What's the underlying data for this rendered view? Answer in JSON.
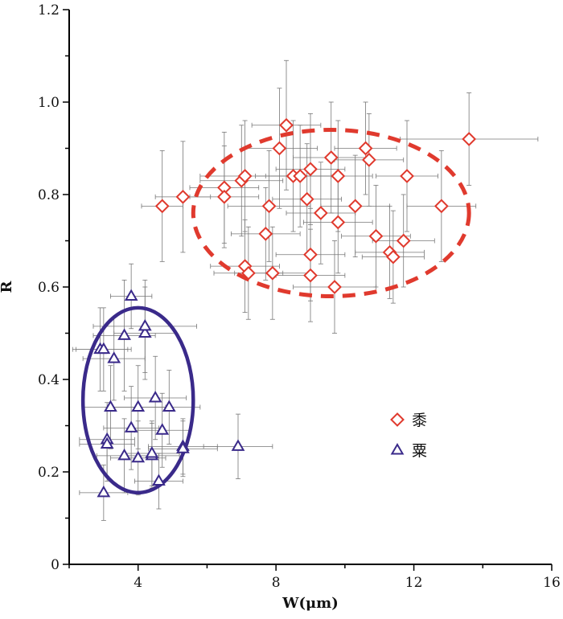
{
  "chart_data": {
    "type": "scatter",
    "xlabel": "W(μm)",
    "ylabel": "R",
    "xlim": [
      2,
      16
    ],
    "ylim": [
      0,
      1.2
    ],
    "x_ticks": [
      4,
      8,
      12,
      16
    ],
    "y_ticks": [
      0,
      0.2,
      0.4,
      0.6,
      0.8,
      1.0,
      1.2
    ],
    "y_tick_labels": [
      "0",
      "0.2",
      "0.4",
      "0.6",
      "0.8",
      "1.0",
      "1.2"
    ],
    "legend_position": "right",
    "grid": false,
    "series": [
      {
        "name": "黍",
        "marker": "diamond",
        "color": "#e03a2e",
        "ellipse": {
          "cx": 9.6,
          "cy": 0.76,
          "rx": 4.0,
          "ry": 0.18,
          "style": "dashed"
        },
        "points": [
          {
            "x": 4.7,
            "y": 0.775,
            "xerr": 0.6,
            "yerr": 0.12
          },
          {
            "x": 5.3,
            "y": 0.795,
            "xerr": 0.8,
            "yerr": 0.12
          },
          {
            "x": 6.5,
            "y": 0.815,
            "xerr": 1.0,
            "yerr": 0.12
          },
          {
            "x": 6.5,
            "y": 0.795,
            "xerr": 1.0,
            "yerr": 0.11
          },
          {
            "x": 7.0,
            "y": 0.83,
            "xerr": 1.2,
            "yerr": 0.12
          },
          {
            "x": 7.1,
            "y": 0.84,
            "xerr": 1.3,
            "yerr": 0.12
          },
          {
            "x": 7.1,
            "y": 0.645,
            "xerr": 1.0,
            "yerr": 0.1
          },
          {
            "x": 7.2,
            "y": 0.63,
            "xerr": 1.0,
            "yerr": 0.1
          },
          {
            "x": 7.7,
            "y": 0.715,
            "xerr": 1.0,
            "yerr": 0.1
          },
          {
            "x": 7.8,
            "y": 0.775,
            "xerr": 1.2,
            "yerr": 0.12
          },
          {
            "x": 7.9,
            "y": 0.63,
            "xerr": 1.1,
            "yerr": 0.1
          },
          {
            "x": 8.1,
            "y": 0.9,
            "xerr": 1.1,
            "yerr": 0.13
          },
          {
            "x": 8.3,
            "y": 0.95,
            "xerr": 1.0,
            "yerr": 0.14
          },
          {
            "x": 8.5,
            "y": 0.84,
            "xerr": 1.1,
            "yerr": 0.12
          },
          {
            "x": 8.7,
            "y": 0.84,
            "xerr": 1.0,
            "yerr": 0.11
          },
          {
            "x": 8.9,
            "y": 0.79,
            "xerr": 1.0,
            "yerr": 0.12
          },
          {
            "x": 9.0,
            "y": 0.855,
            "xerr": 1.0,
            "yerr": 0.12
          },
          {
            "x": 9.0,
            "y": 0.67,
            "xerr": 1.0,
            "yerr": 0.1
          },
          {
            "x": 9.0,
            "y": 0.625,
            "xerr": 1.0,
            "yerr": 0.1
          },
          {
            "x": 9.3,
            "y": 0.76,
            "xerr": 1.0,
            "yerr": 0.11
          },
          {
            "x": 9.6,
            "y": 0.88,
            "xerr": 1.1,
            "yerr": 0.12
          },
          {
            "x": 9.7,
            "y": 0.6,
            "xerr": 1.2,
            "yerr": 0.1
          },
          {
            "x": 9.8,
            "y": 0.84,
            "xerr": 1.0,
            "yerr": 0.12
          },
          {
            "x": 9.8,
            "y": 0.74,
            "xerr": 1.0,
            "yerr": 0.11
          },
          {
            "x": 10.3,
            "y": 0.775,
            "xerr": 1.0,
            "yerr": 0.11
          },
          {
            "x": 10.6,
            "y": 0.9,
            "xerr": 0.9,
            "yerr": 0.1
          },
          {
            "x": 10.7,
            "y": 0.875,
            "xerr": 1.0,
            "yerr": 0.1
          },
          {
            "x": 10.9,
            "y": 0.71,
            "xerr": 1.0,
            "yerr": 0.11
          },
          {
            "x": 11.3,
            "y": 0.675,
            "xerr": 1.0,
            "yerr": 0.1
          },
          {
            "x": 11.4,
            "y": 0.665,
            "xerr": 0.9,
            "yerr": 0.1
          },
          {
            "x": 11.7,
            "y": 0.7,
            "xerr": 0.9,
            "yerr": 0.1
          },
          {
            "x": 11.8,
            "y": 0.84,
            "xerr": 0.9,
            "yerr": 0.12
          },
          {
            "x": 12.8,
            "y": 0.775,
            "xerr": 1.0,
            "yerr": 0.12
          },
          {
            "x": 13.6,
            "y": 0.92,
            "xerr": 2.0,
            "yerr": 0.1
          }
        ]
      },
      {
        "name": "粟",
        "marker": "triangle",
        "color": "#3a2a8a",
        "ellipse": {
          "cx": 4.0,
          "cy": 0.355,
          "rx": 1.6,
          "ry": 0.2,
          "style": "solid"
        },
        "points": [
          {
            "x": 2.9,
            "y": 0.465,
            "xerr": 0.8,
            "yerr": 0.09
          },
          {
            "x": 3.0,
            "y": 0.465,
            "xerr": 0.8,
            "yerr": 0.09
          },
          {
            "x": 3.0,
            "y": 0.155,
            "xerr": 0.7,
            "yerr": 0.06
          },
          {
            "x": 3.1,
            "y": 0.27,
            "xerr": 0.8,
            "yerr": 0.08
          },
          {
            "x": 3.1,
            "y": 0.26,
            "xerr": 0.8,
            "yerr": 0.08
          },
          {
            "x": 3.2,
            "y": 0.34,
            "xerr": 0.8,
            "yerr": 0.09
          },
          {
            "x": 3.3,
            "y": 0.445,
            "xerr": 0.9,
            "yerr": 0.09
          },
          {
            "x": 3.6,
            "y": 0.495,
            "xerr": 0.9,
            "yerr": 0.12
          },
          {
            "x": 3.6,
            "y": 0.235,
            "xerr": 0.8,
            "yerr": 0.08
          },
          {
            "x": 3.8,
            "y": 0.58,
            "xerr": 0.6,
            "yerr": 0.07
          },
          {
            "x": 3.8,
            "y": 0.295,
            "xerr": 0.8,
            "yerr": 0.09
          },
          {
            "x": 4.0,
            "y": 0.34,
            "xerr": 0.8,
            "yerr": 0.09
          },
          {
            "x": 4.0,
            "y": 0.23,
            "xerr": 0.8,
            "yerr": 0.08
          },
          {
            "x": 4.2,
            "y": 0.5,
            "xerr": 0.9,
            "yerr": 0.1
          },
          {
            "x": 4.2,
            "y": 0.515,
            "xerr": 1.5,
            "yerr": 0.1
          },
          {
            "x": 4.4,
            "y": 0.235,
            "xerr": 0.8,
            "yerr": 0.07
          },
          {
            "x": 4.4,
            "y": 0.24,
            "xerr": 0.8,
            "yerr": 0.07
          },
          {
            "x": 4.5,
            "y": 0.36,
            "xerr": 0.9,
            "yerr": 0.09
          },
          {
            "x": 4.6,
            "y": 0.18,
            "xerr": 0.7,
            "yerr": 0.06
          },
          {
            "x": 4.7,
            "y": 0.29,
            "xerr": 0.8,
            "yerr": 0.08
          },
          {
            "x": 4.9,
            "y": 0.34,
            "xerr": 0.9,
            "yerr": 0.08
          },
          {
            "x": 5.3,
            "y": 0.255,
            "xerr": 1.0,
            "yerr": 0.06
          },
          {
            "x": 5.3,
            "y": 0.25,
            "xerr": 1.0,
            "yerr": 0.06
          },
          {
            "x": 6.9,
            "y": 0.255,
            "xerr": 1.0,
            "yerr": 0.07
          }
        ]
      }
    ]
  }
}
